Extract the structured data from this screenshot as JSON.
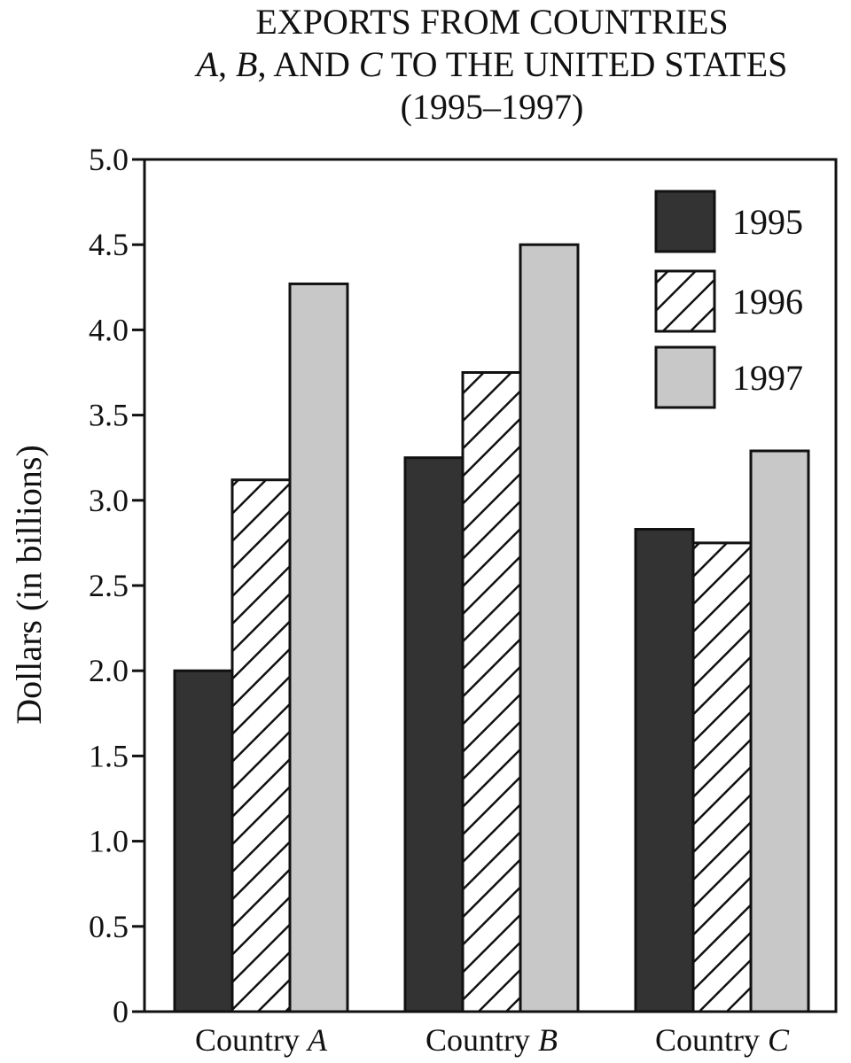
{
  "title": {
    "line1": "EXPORTS FROM COUNTRIES",
    "line2_a": "A",
    "line2_sep1": ", ",
    "line2_b": "B",
    "line2_mid": ", AND ",
    "line2_c": "C",
    "line2_rest": " TO THE UNITED STATES",
    "line3": "(1995–1997)"
  },
  "chart_data": {
    "type": "bar",
    "title": "EXPORTS FROM COUNTRIES A, B, AND C TO THE UNITED STATES (1995–1997)",
    "ylabel": "Dollars (in billions)",
    "xlabel": "",
    "ylim": [
      0,
      5.0
    ],
    "yticks": [
      "0",
      "0.5",
      "1.0",
      "1.5",
      "2.0",
      "2.5",
      "3.0",
      "3.5",
      "4.0",
      "4.5",
      "5.0"
    ],
    "categories": [
      {
        "prefix": "Country ",
        "letter": "A"
      },
      {
        "prefix": "Country ",
        "letter": "B"
      },
      {
        "prefix": "Country ",
        "letter": "C"
      }
    ],
    "series": [
      {
        "name": "1995",
        "style": "solid",
        "color": "#333333",
        "values": [
          2.0,
          3.25,
          2.83
        ]
      },
      {
        "name": "1996",
        "style": "hatched",
        "color": "#ffffff",
        "values": [
          3.12,
          3.75,
          2.75
        ]
      },
      {
        "name": "1997",
        "style": "light",
        "color": "#c8c8c8",
        "values": [
          4.27,
          4.5,
          3.29
        ]
      }
    ],
    "legend_position": "top-right",
    "grid": false
  }
}
